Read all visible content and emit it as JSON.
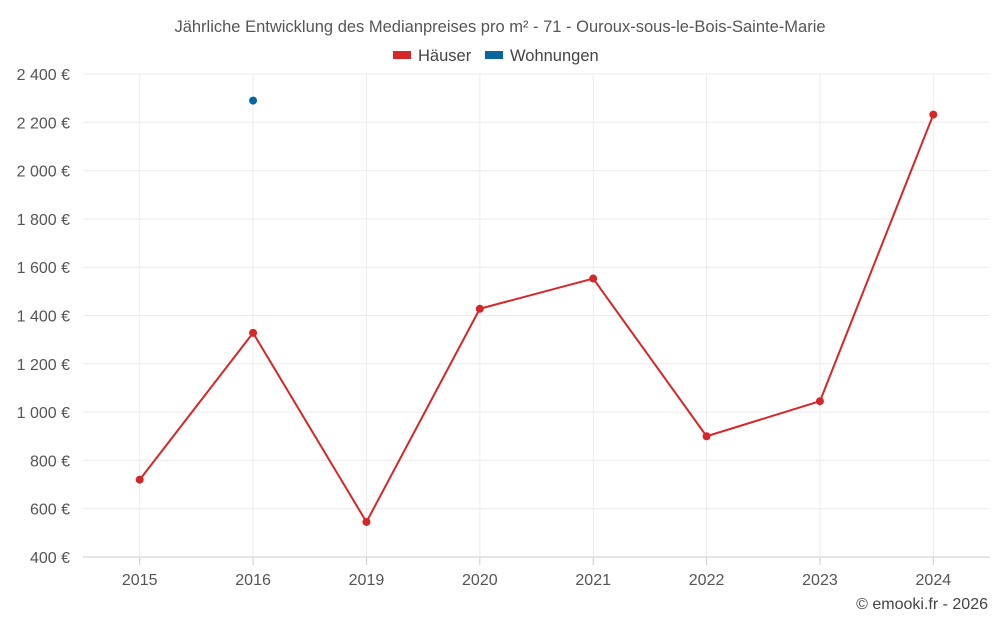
{
  "chart_data": {
    "type": "line",
    "title": "Jährliche Entwicklung des Medianpreises pro m² - 71 - Ouroux-sous-le-Bois-Sainte-Marie",
    "categories": [
      "2015",
      "2016",
      "2019",
      "2020",
      "2021",
      "2022",
      "2023",
      "2024"
    ],
    "series": [
      {
        "name": "Häuser",
        "color": "#d62728",
        "values": [
          720,
          1328,
          545,
          1428,
          1553,
          900,
          1045,
          2232
        ]
      },
      {
        "name": "Wohnungen",
        "color": "#08659e",
        "values": [
          null,
          2290,
          null,
          null,
          null,
          null,
          null,
          null
        ]
      }
    ],
    "ylim": [
      400,
      2400
    ],
    "yticks": [
      400,
      600,
      800,
      1000,
      1200,
      1400,
      1600,
      1800,
      2000,
      2200,
      2400
    ],
    "ytick_labels": [
      "400 €",
      "600 €",
      "800 €",
      "1 000 €",
      "1 200 €",
      "1 400 €",
      "1 600 €",
      "1 800 €",
      "2 000 €",
      "2 200 €",
      "2 400 €"
    ],
    "xlabel": "",
    "ylabel": "",
    "grid": true,
    "legend": "top-center"
  },
  "credit": "© emooki.fr - 2026"
}
